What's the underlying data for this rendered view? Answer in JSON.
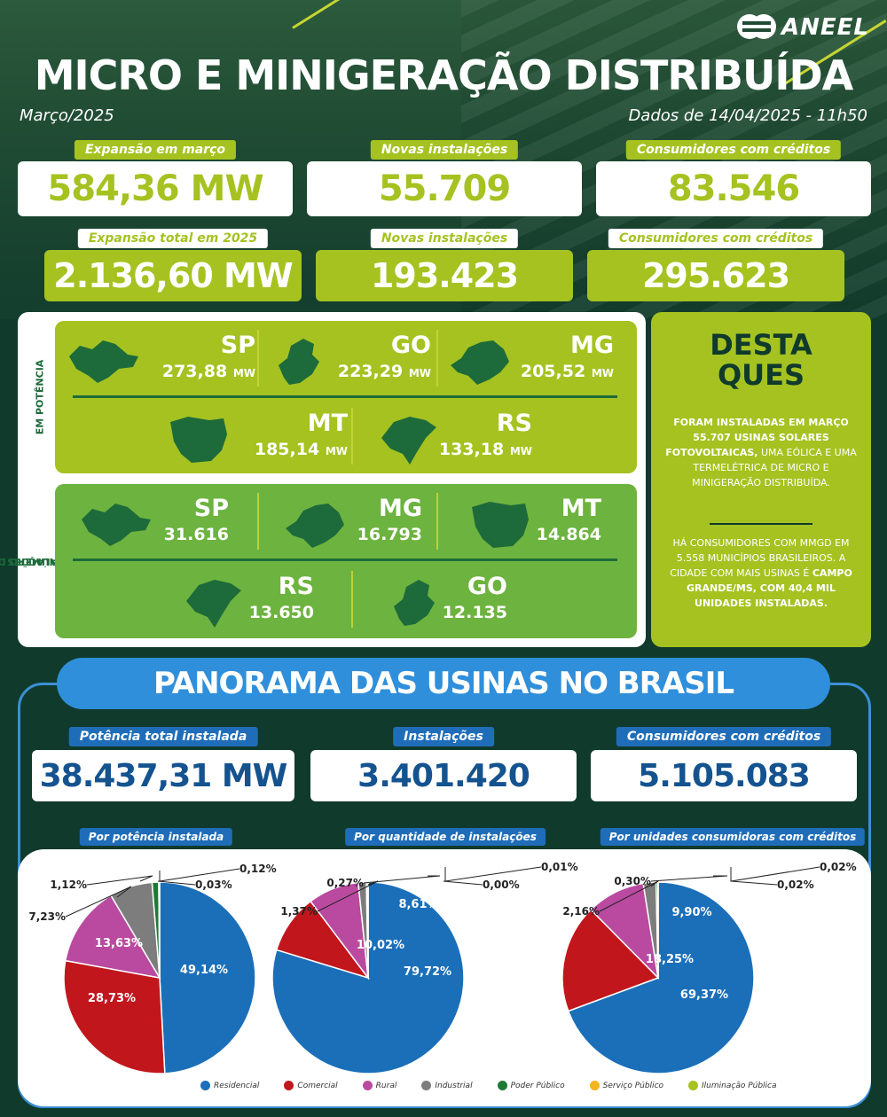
{
  "header": {
    "logo_text": "ANEEL",
    "title": "MICRO E MINIGERAÇÃO DISTRIBUÍDA",
    "month": "Março/2025",
    "data_date": "Dados de 14/04/2025 - 11h50"
  },
  "monthly": {
    "expansion_label": "Expansão em março",
    "expansion_value": "584,36 MW",
    "installs_label": "Novas instalações",
    "installs_value": "55.709",
    "consumers_label": "Consumidores com créditos",
    "consumers_value": "83.546"
  },
  "yearly": {
    "expansion_label": "Expansão total em 2025",
    "expansion_value": "2.136,60 MW",
    "installs_label": "Novas instalações",
    "installs_value": "193.423",
    "consumers_label": "Consumidores com créditos",
    "consumers_value": "295.623"
  },
  "states": {
    "power_label": "EM POTÊNCIA",
    "installs_label_line1": "EM NÚMERO DE",
    "installs_label_line2": "INSTALAÇÕES",
    "unit": "MW",
    "power": [
      {
        "code": "SP",
        "value": "273,88"
      },
      {
        "code": "GO",
        "value": "223,29"
      },
      {
        "code": "MG",
        "value": "205,52"
      },
      {
        "code": "MT",
        "value": "185,14"
      },
      {
        "code": "RS",
        "value": "133,18"
      }
    ],
    "installs": [
      {
        "code": "SP",
        "value": "31.616"
      },
      {
        "code": "MG",
        "value": "16.793"
      },
      {
        "code": "MT",
        "value": "14.864"
      },
      {
        "code": "RS",
        "value": "13.650"
      },
      {
        "code": "GO",
        "value": "12.135"
      }
    ]
  },
  "highlights": {
    "title_line1": "DESTA",
    "title_line2": "QUES",
    "p1_bold": "FORAM INSTALADAS EM MARÇO 55.707 USINAS SOLARES FOTOVOLTAICAS,",
    "p1_rest": " UMA EÓLICA E UMA TERMELÉTRICA DE MICRO E MINIGERAÇÃO DISTRIBUÍDA.",
    "p2_start": "HÁ CONSUMIDORES COM MMGD EM 5.558 MUNICÍPIOS BRASILEIROS. A CIDADE COM MAIS USINAS É ",
    "p2_bold": "CAMPO GRANDE/MS, COM 40,4 MIL UNIDADES INSTALADAS."
  },
  "panorama": {
    "title": "PANORAMA DAS USINAS NO BRASIL",
    "power_label": "Potência total instalada",
    "power_value": "38.437,31 MW",
    "installs_label": "Instalações",
    "installs_value": "3.401.420",
    "consumers_label": "Consumidores com créditos",
    "consumers_value": "5.105.083"
  },
  "colors": {
    "residencial": "#1b6fb9",
    "comercial": "#c2161d",
    "rural": "#b94a9f",
    "industrial": "#7d7d7d",
    "poder_publico": "#1d7a35",
    "servico_publico": "#f2b51f",
    "iluminacao_publica": "#a5c221"
  },
  "chart_data": [
    {
      "type": "pie",
      "title": "Por potência instalada",
      "categories": [
        "Residencial",
        "Comercial",
        "Rural",
        "Industrial",
        "Poder Público",
        "Serviço Público",
        "Iluminação Pública"
      ],
      "values": [
        49.14,
        28.73,
        13.63,
        7.23,
        1.12,
        0.03,
        0.12
      ],
      "labels": [
        "49,14%",
        "28,73%",
        "13,63%",
        "7,23%",
        "1,12%",
        "0,03%",
        "0,12%"
      ]
    },
    {
      "type": "pie",
      "title": "Por quantidade de instalações",
      "categories": [
        "Residencial",
        "Comercial",
        "Rural",
        "Industrial",
        "Poder Público",
        "Serviço Público",
        "Iluminação Pública"
      ],
      "values": [
        79.72,
        10.02,
        8.61,
        1.37,
        0.27,
        0.0,
        0.01
      ],
      "labels": [
        "79,72%",
        "10,02%",
        "8,61%",
        "1,37%",
        "0,27%",
        "0,00%",
        "0,01%"
      ]
    },
    {
      "type": "pie",
      "title": "Por unidades consumidoras com créditos",
      "categories": [
        "Residencial",
        "Comercial",
        "Rural",
        "Industrial",
        "Poder Público",
        "Serviço Público",
        "Iluminação Pública"
      ],
      "values": [
        69.37,
        18.25,
        9.9,
        2.16,
        0.3,
        0.02,
        0.02
      ],
      "labels": [
        "69,37%",
        "18,25%",
        "9,90%",
        "2,16%",
        "0,30%",
        "0,02%",
        "0,02%"
      ]
    }
  ],
  "legend": [
    "Residencial",
    "Comercial",
    "Rural",
    "Industrial",
    "Poder Público",
    "Serviço Público",
    "Iluminação Pública"
  ]
}
